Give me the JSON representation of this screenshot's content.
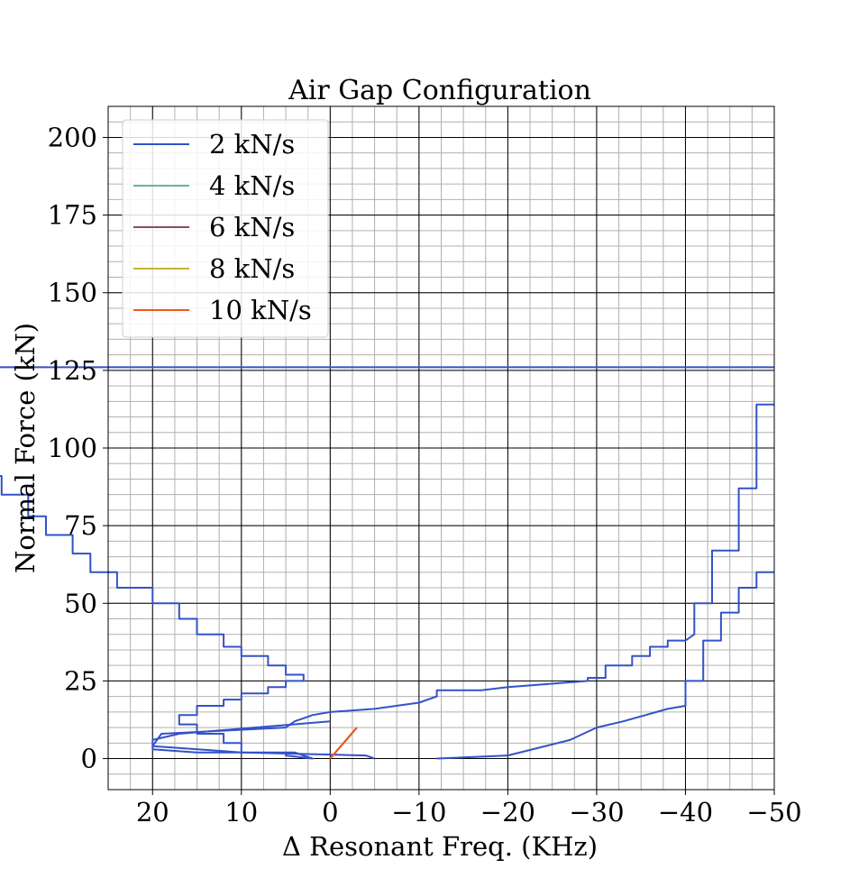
{
  "chart_data": {
    "type": "line",
    "title": "Air Gap Configuration",
    "xlabel": "Δ Resonant Freq. (KHz)",
    "ylabel": "Normal Force (kN)",
    "xlim": [
      25,
      -50
    ],
    "ylim": [
      -10,
      210
    ],
    "x_axis_reversed": true,
    "xticks": [
      20,
      10,
      0,
      -10,
      -20,
      -30,
      -40,
      -50
    ],
    "xtick_labels": [
      "20",
      "10",
      "0",
      "−10",
      "−20",
      "−30",
      "−40",
      "−50"
    ],
    "yticks": [
      0,
      25,
      50,
      75,
      100,
      125,
      150,
      175,
      200
    ],
    "ytick_labels": [
      "0",
      "25",
      "50",
      "75",
      "100",
      "125",
      "150",
      "175",
      "200"
    ],
    "grid": "major and minor",
    "legend_position": "upper-left",
    "series": [
      {
        "name": "2 kN/s",
        "color": "#3352c8",
        "segments": [
          {
            "x": [
              -12,
              -20,
              -27,
              -30,
              -33,
              -38,
              -40,
              -40,
              -42,
              -42,
              -44,
              -44,
              -46,
              -46,
              -48,
              -48,
              -50
            ],
            "y": [
              0,
              1,
              6,
              10,
              12,
              16,
              17,
              25,
              25,
              38,
              38,
              47,
              47,
              55,
              55,
              60,
              60
            ]
          },
          {
            "x": [
              -5,
              -4,
              10,
              20,
              19,
              5,
              4,
              3,
              2,
              0,
              -5,
              -10,
              -12,
              -12,
              -17,
              -20,
              -29,
              -29,
              -31,
              -31,
              -34,
              -34,
              -36,
              -36,
              -38,
              -38,
              -40,
              -41,
              -41,
              -43,
              -43,
              -46,
              -46,
              -48,
              -48,
              -50
            ],
            "y": [
              0,
              1,
              2,
              4,
              8,
              10,
              12,
              13,
              14,
              15,
              16,
              18,
              20,
              22,
              22,
              23,
              25,
              26,
              26,
              30,
              30,
              33,
              33,
              36,
              36,
              38,
              38,
              40,
              50,
              50,
              67,
              67,
              87,
              87,
              114,
              114
            ]
          },
          {
            "x": [
              0,
              17,
              20,
              20,
              15,
              10,
              4,
              2,
              5,
              5,
              10,
              10,
              12,
              12,
              15,
              15,
              17,
              17,
              15,
              15,
              12,
              12,
              10,
              10,
              7,
              7,
              5,
              5,
              3,
              3,
              5,
              5,
              7,
              7,
              10,
              10,
              12,
              12,
              15,
              15,
              17,
              17,
              20,
              20,
              24,
              24,
              27,
              27,
              29,
              29,
              32,
              32,
              34,
              34,
              37,
              37,
              39,
              39,
              41,
              41,
              44,
              44,
              46,
              46,
              48,
              48,
              -50
            ],
            "y": [
              12,
              8,
              6,
              3,
              2,
              2,
              2,
              0,
              1,
              2,
              2,
              5,
              5,
              8,
              8,
              11,
              11,
              14,
              14,
              17,
              17,
              19,
              19,
              21,
              21,
              23,
              23,
              25,
              25,
              27,
              27,
              30,
              30,
              33,
              33,
              36,
              36,
              40,
              40,
              45,
              45,
              50,
              50,
              55,
              55,
              60,
              60,
              66,
              66,
              72,
              72,
              78,
              78,
              85,
              85,
              91,
              91,
              98,
              98,
              105,
              105,
              112,
              112,
              120,
              120,
              126,
              126
            ]
          }
        ]
      },
      {
        "name": "4 kN/s",
        "color": "#6db59a",
        "segments": [
          {
            "x": [
              0,
              -3
            ],
            "y": [
              0,
              10
            ]
          }
        ]
      },
      {
        "name": "6 kN/s",
        "color": "#8c4a65",
        "segments": [
          {
            "x": [
              0,
              -3
            ],
            "y": [
              0,
              10
            ]
          }
        ]
      },
      {
        "name": "8 kN/s",
        "color": "#ccb036",
        "segments": [
          {
            "x": [
              0,
              -3
            ],
            "y": [
              0,
              10
            ]
          }
        ]
      },
      {
        "name": "10 kN/s",
        "color": "#f2561d",
        "segments": [
          {
            "x": [
              0,
              -3
            ],
            "y": [
              0,
              10
            ]
          }
        ]
      }
    ]
  }
}
